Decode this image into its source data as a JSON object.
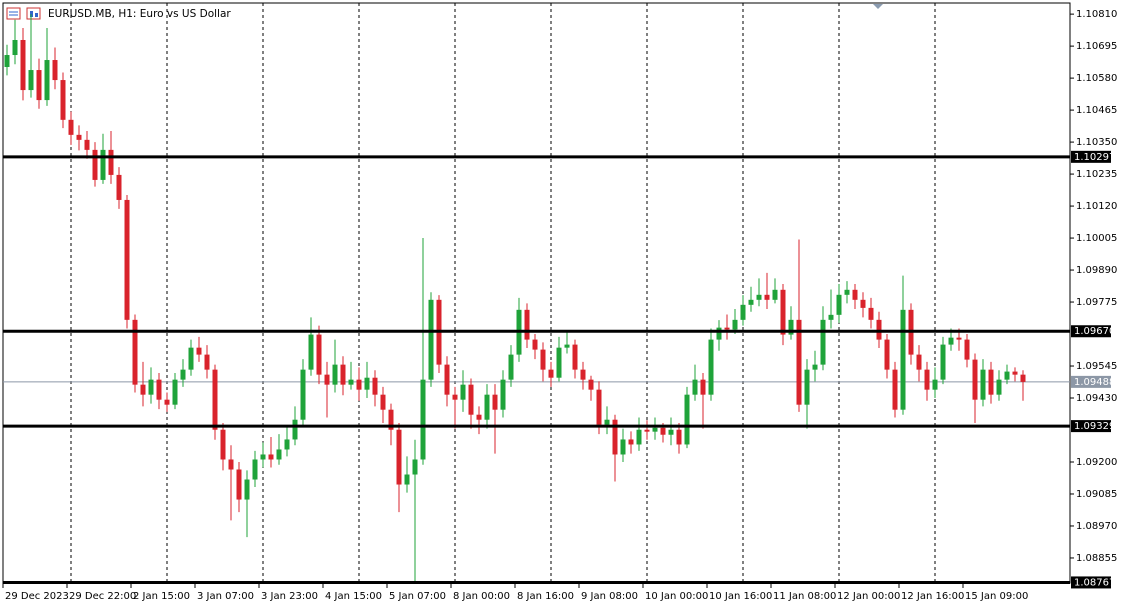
{
  "chart_data": {
    "type": "candlestick",
    "title": "EURUSD.MB, H1:  Euro vs US Dollar",
    "categories": [
      "29 Dec 2023",
      null,
      null,
      null,
      null,
      null,
      null,
      null,
      "29 Dec 22:00",
      null,
      null,
      null,
      null,
      null,
      null,
      null,
      "2 Jan 15:00",
      null,
      null,
      null,
      null,
      null,
      null,
      null,
      "3 Jan 07:00",
      null,
      null,
      null,
      null,
      null,
      null,
      null,
      "3 Jan 23:00",
      null,
      null,
      null,
      null,
      null,
      null,
      null,
      "4 Jan 15:00",
      null,
      null,
      null,
      null,
      null,
      null,
      null,
      "5 Jan 07:00",
      null,
      null,
      null,
      null,
      null,
      null,
      null,
      "8 Jan 00:00",
      null,
      null,
      null,
      null,
      null,
      null,
      null,
      "8 Jan 16:00",
      null,
      null,
      null,
      null,
      null,
      null,
      null,
      "9 Jan 08:00",
      null,
      null,
      null,
      null,
      null,
      null,
      null,
      "10 Jan 00:00",
      null,
      null,
      null,
      null,
      null,
      null,
      null,
      "10 Jan 16:00",
      null,
      null,
      null,
      null,
      null,
      null,
      null,
      "11 Jan 08:00",
      null,
      null,
      null,
      null,
      null,
      null,
      null,
      "12 Jan 00:00",
      null,
      null,
      null,
      null,
      null,
      null,
      null,
      "12 Jan 16:00",
      null,
      null,
      null,
      null,
      null,
      null,
      null,
      "15 Jan 09:00",
      null,
      null,
      null,
      null,
      null,
      null,
      null
    ],
    "open": [
      1.1062,
      1.10663,
      1.10717,
      1.10537,
      1.10609,
      1.10501,
      1.10645,
      1.10573,
      1.1043,
      1.10376,
      1.10358,
      1.10322,
      1.10214,
      1.10322,
      1.10232,
      1.10142,
      1.09711,
      1.09478,
      1.09442,
      1.09496,
      1.09424,
      1.09406,
      1.09496,
      1.09532,
      1.09611,
      1.09586,
      1.09532,
      1.09316,
      1.09209,
      1.09173,
      1.09065,
      1.09137,
      1.09209,
      1.09227,
      1.09209,
      1.09245,
      1.09281,
      1.09352,
      1.09532,
      1.09658,
      1.09514,
      1.09478,
      1.0955,
      1.09478,
      1.09496,
      1.0946,
      1.09503,
      1.09442,
      1.09388,
      1.09316,
      1.09119,
      1.09155,
      1.09209,
      1.09496,
      1.09783,
      1.0955,
      1.09442,
      1.09424,
      1.09478,
      1.0937,
      1.09352,
      1.09442,
      1.09388,
      1.09496,
      1.09586,
      1.09747,
      1.0964,
      1.09604,
      1.09532,
      1.09503,
      1.09611,
      1.09622,
      1.09532,
      1.09496,
      1.0946,
      1.09334,
      1.09352,
      1.09227,
      1.09281,
      1.09263,
      1.09316,
      1.09309,
      1.09323,
      1.09298,
      1.09316,
      1.09263,
      1.09442,
      1.09496,
      1.09442,
      1.0964,
      1.09683,
      1.09676,
      1.09711,
      1.09765,
      1.09783,
      1.09801,
      1.09783,
      1.09819,
      1.09658,
      1.09711,
      1.09406,
      1.09532,
      1.0955,
      1.09711,
      1.09729,
      1.09801,
      1.09819,
      1.09783,
      1.09754,
      1.09711,
      1.0964,
      1.09532,
      1.09388,
      1.09747,
      1.09586,
      1.09532,
      1.0946,
      1.09496,
      1.09622,
      1.09647,
      1.0964,
      1.09568,
      1.09424,
      1.09532,
      1.09442,
      1.09496,
      1.09525,
      1.09514
    ],
    "high": [
      1.107,
      1.1079,
      1.1076,
      1.1081,
      1.1065,
      1.1076,
      1.1069,
      1.106,
      1.1046,
      1.1041,
      1.1039,
      1.1035,
      1.1038,
      1.1039,
      1.1026,
      1.1016,
      1.0973,
      1.0956,
      1.0954,
      1.0952,
      1.0945,
      1.0952,
      1.0957,
      1.0964,
      1.0965,
      1.0962,
      1.0955,
      1.0934,
      1.0926,
      1.092,
      1.0917,
      1.0924,
      1.0927,
      1.0929,
      1.093,
      1.0933,
      1.094,
      1.0957,
      1.0972,
      1.0969,
      1.0956,
      1.0964,
      1.0958,
      1.0956,
      1.0954,
      1.0956,
      1.0953,
      1.0947,
      1.0941,
      1.0934,
      1.0922,
      1.0928,
      1.10005,
      1.0981,
      1.098,
      1.0958,
      1.0947,
      1.0953,
      1.095,
      1.094,
      1.0948,
      1.0948,
      1.0953,
      1.0962,
      1.0979,
      1.0977,
      1.0966,
      1.0963,
      1.0956,
      1.0965,
      1.0967,
      1.0964,
      1.0956,
      1.0951,
      1.0949,
      1.094,
      1.0937,
      1.0932,
      1.0931,
      1.0936,
      1.0935,
      1.0936,
      1.0934,
      1.0936,
      1.0934,
      1.0947,
      1.0955,
      1.0952,
      1.0968,
      1.0971,
      1.0973,
      1.0975,
      1.098,
      1.0983,
      1.0986,
      1.0988,
      1.0986,
      1.0984,
      1.0976,
      1.1,
      1.0957,
      1.096,
      1.0976,
      1.0982,
      1.0984,
      1.0985,
      1.0984,
      1.0981,
      1.0979,
      1.0974,
      1.0966,
      1.0956,
      1.0987,
      1.0977,
      1.0962,
      1.0956,
      1.0954,
      1.0965,
      1.0968,
      1.0968,
      1.0966,
      1.0959,
      1.0957,
      1.0956,
      1.0953,
      1.0955,
      1.0954,
      1.0953
    ],
    "low": [
      1.1059,
      1.1063,
      1.105,
      1.1051,
      1.1047,
      1.1048,
      1.1054,
      1.104,
      1.1034,
      1.1032,
      1.1029,
      1.1019,
      1.102,
      1.102,
      1.1011,
      1.0968,
      1.0945,
      1.094,
      1.0941,
      1.0939,
      1.0938,
      1.0939,
      1.0947,
      1.0951,
      1.0956,
      1.095,
      1.0928,
      1.0917,
      1.0899,
      1.0902,
      1.0893,
      1.0911,
      1.0918,
      1.0918,
      1.0919,
      1.0922,
      1.0926,
      1.0933,
      1.0951,
      1.0948,
      1.0936,
      1.0945,
      1.0944,
      1.0946,
      1.0942,
      1.0943,
      1.094,
      1.0934,
      1.0926,
      1.0902,
      1.0909,
      1.08767,
      1.0919,
      1.0947,
      1.0952,
      1.094,
      1.0932,
      1.0938,
      1.0932,
      1.093,
      1.0932,
      1.0923,
      1.0936,
      1.0947,
      1.0956,
      1.0961,
      1.0957,
      1.0949,
      1.0947,
      1.0949,
      1.0959,
      1.095,
      1.0946,
      1.0942,
      1.093,
      1.093,
      1.0913,
      1.092,
      1.0923,
      1.0924,
      1.0928,
      1.0928,
      1.0927,
      1.0926,
      1.0923,
      1.0925,
      1.0942,
      1.0932,
      1.0942,
      1.096,
      1.0964,
      1.0966,
      1.0969,
      1.0974,
      1.0976,
      1.0975,
      1.0977,
      1.0962,
      1.0964,
      1.0938,
      1.0932,
      1.0949,
      1.0953,
      1.0968,
      1.097,
      1.0977,
      1.0975,
      1.0972,
      1.0968,
      1.0961,
      1.095,
      1.0936,
      1.0937,
      1.0955,
      1.0949,
      1.0942,
      1.0943,
      1.0948,
      1.096,
      1.096,
      1.0954,
      1.0934,
      1.094,
      1.0941,
      1.0942,
      1.0948,
      1.0949,
      1.0942
    ],
    "close": [
      1.10663,
      1.10717,
      1.10537,
      1.10609,
      1.10501,
      1.10645,
      1.10573,
      1.1043,
      1.10376,
      1.10358,
      1.10322,
      1.10214,
      1.10322,
      1.10232,
      1.10142,
      1.09711,
      1.09478,
      1.09442,
      1.09496,
      1.09424,
      1.09406,
      1.09496,
      1.09532,
      1.09611,
      1.09586,
      1.09532,
      1.09316,
      1.09209,
      1.09173,
      1.09065,
      1.09137,
      1.09209,
      1.09227,
      1.09209,
      1.09245,
      1.09281,
      1.09352,
      1.09532,
      1.09658,
      1.09514,
      1.09478,
      1.0955,
      1.09478,
      1.09496,
      1.0946,
      1.09503,
      1.09442,
      1.09388,
      1.09316,
      1.09119,
      1.09155,
      1.09209,
      1.09496,
      1.09783,
      1.0955,
      1.09442,
      1.09424,
      1.09478,
      1.0937,
      1.09352,
      1.09442,
      1.09388,
      1.09496,
      1.09586,
      1.09747,
      1.0964,
      1.09604,
      1.09532,
      1.09503,
      1.09611,
      1.09622,
      1.09532,
      1.09496,
      1.0946,
      1.09334,
      1.09352,
      1.09227,
      1.09281,
      1.09263,
      1.09316,
      1.09309,
      1.09323,
      1.09298,
      1.09316,
      1.09263,
      1.09442,
      1.09496,
      1.09442,
      1.0964,
      1.09683,
      1.09676,
      1.09711,
      1.09765,
      1.09783,
      1.09801,
      1.09783,
      1.09819,
      1.09658,
      1.09711,
      1.09406,
      1.09532,
      1.0955,
      1.09711,
      1.09729,
      1.09801,
      1.09819,
      1.09783,
      1.09754,
      1.09711,
      1.0964,
      1.09532,
      1.09388,
      1.09747,
      1.09586,
      1.09532,
      1.0946,
      1.09496,
      1.09622,
      1.09647,
      1.0964,
      1.09568,
      1.09424,
      1.09532,
      1.09442,
      1.09496,
      1.09525,
      1.09514,
      1.09488
    ],
    "up_color": "#1fa33a",
    "down_color": "#d9232c",
    "ylim": [
      1.08765,
      1.1085
    ],
    "yticks": [
      {
        "value": 1.1081,
        "label": "1.10810"
      },
      1.10695,
      {
        "value": 1.1058,
        "label": "1.10580"
      },
      1.10465,
      {
        "value": 1.1035,
        "label": "1.10350"
      },
      1.10235,
      {
        "value": 1.1012,
        "label": "1.10120"
      },
      1.10005,
      {
        "value": 1.0989,
        "label": "1.09890"
      },
      1.09775,
      1.09545,
      {
        "value": 1.0943,
        "label": "1.09430"
      },
      {
        "value": 1.092,
        "label": "1.09200"
      },
      1.09085,
      {
        "value": 1.0897,
        "label": "1.08970"
      },
      1.08855
    ],
    "levels": [
      1.10297,
      {
        "value": 1.0967,
        "label": "1.09670"
      },
      1.09329,
      1.08767
    ],
    "bid": 1.09488
  }
}
